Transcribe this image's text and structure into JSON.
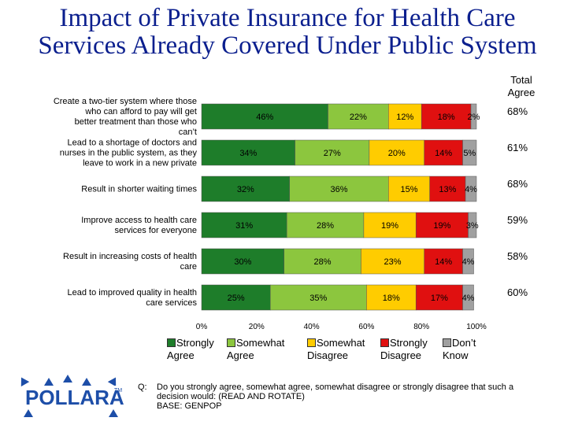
{
  "title": "Impact of Private Insurance for Health Care Services Already Covered Under Public System",
  "total_header": "Total Agree",
  "legend": [
    {
      "label": "Strongly Agree",
      "color": "#1e7d2a"
    },
    {
      "label": "Somewhat Agree",
      "color": "#8cc63e"
    },
    {
      "label": "Somewhat Disagree",
      "color": "#ffcc00"
    },
    {
      "label": "Strongly Disagree",
      "color": "#e01010"
    },
    {
      "label": "Don’t Know",
      "color": "#a0a0a0"
    }
  ],
  "chart_data": {
    "type": "bar",
    "orientation": "horizontal",
    "stacked": true,
    "categories": [
      "Create a two-tier system where those who can afford to pay will get better treatment than those who can’t",
      "Lead to a shortage of doctors and nurses in the public system, as they leave to work in a new private",
      "Result in shorter waiting times",
      "Improve access to health care services for everyone",
      "Result in increasing costs of health care",
      "Lead to improved quality in health care services"
    ],
    "series": [
      {
        "name": "Strongly Agree",
        "values": [
          46,
          34,
          32,
          31,
          30,
          25
        ]
      },
      {
        "name": "Somewhat Agree",
        "values": [
          22,
          27,
          36,
          28,
          28,
          35
        ]
      },
      {
        "name": "Somewhat Disagree",
        "values": [
          12,
          20,
          15,
          19,
          23,
          18
        ]
      },
      {
        "name": "Strongly Disagree",
        "values": [
          18,
          14,
          13,
          19,
          14,
          17
        ]
      },
      {
        "name": "Don’t Know",
        "values": [
          2,
          5,
          4,
          3,
          4,
          4
        ]
      }
    ],
    "value_labels": [
      [
        "46%",
        "22%",
        "12%",
        "18%",
        "2%"
      ],
      [
        "34%",
        "27%",
        "20%",
        "14%",
        "5%"
      ],
      [
        "32%",
        "36%",
        "15%",
        "13%",
        "4%"
      ],
      [
        "31%",
        "28%",
        "19%",
        "19%",
        "3%"
      ],
      [
        "30%",
        "28%",
        "23%",
        "14%",
        "4%"
      ],
      [
        "25%",
        "35%",
        "18%",
        "17%",
        "4%"
      ]
    ],
    "total_agree": [
      "68%",
      "61%",
      "68%",
      "59%",
      "58%",
      "60%"
    ],
    "xlim": [
      0,
      100
    ],
    "x_ticks": [
      "0%",
      "20%",
      "40%",
      "60%",
      "80%",
      "100%"
    ],
    "grid": false
  },
  "footnote": {
    "q_label": "Q:",
    "question": "Do you strongly agree, somewhat agree, somewhat disagree or strongly disagree that such a decision would: (READ AND ROTATE)",
    "base": "BASE: GENPOP"
  },
  "logo_text": "POLLARA",
  "logo_tm": "TM"
}
